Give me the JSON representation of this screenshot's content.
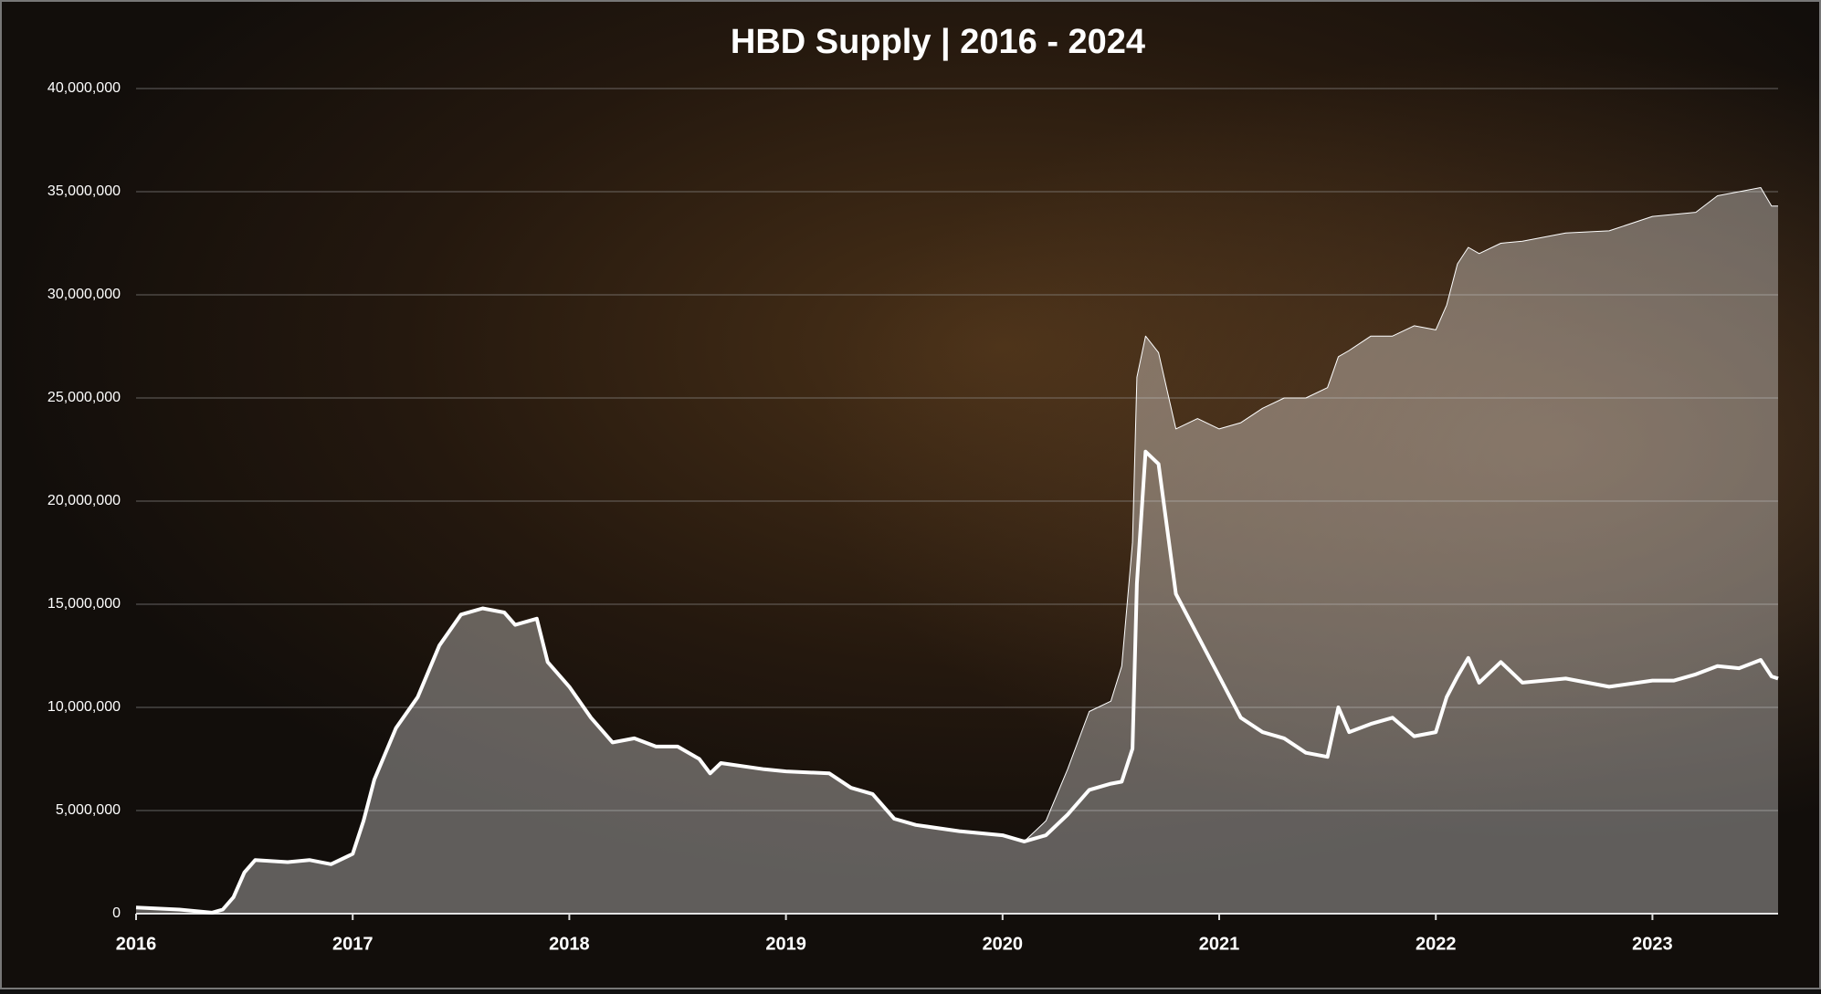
{
  "chart_data": {
    "type": "line",
    "title": "HBD Supply | 2016 - 2024",
    "x": [
      2016,
      2016.2,
      2016.35,
      2016.4,
      2016.45,
      2016.5,
      2016.55,
      2016.7,
      2016.8,
      2016.9,
      2017,
      2017.05,
      2017.1,
      2017.2,
      2017.3,
      2017.4,
      2017.5,
      2017.6,
      2017.7,
      2017.75,
      2017.85,
      2017.9,
      2018,
      2018.1,
      2018.2,
      2018.3,
      2018.4,
      2018.5,
      2018.6,
      2018.65,
      2018.7,
      2018.9,
      2019,
      2019.2,
      2019.3,
      2019.4,
      2019.5,
      2019.6,
      2019.8,
      2020,
      2020.1,
      2020.2,
      2020.3,
      2020.4,
      2020.5,
      2020.55,
      2020.6,
      2020.62,
      2020.66,
      2020.72,
      2020.8,
      2020.9,
      2021,
      2021.1,
      2021.2,
      2021.3,
      2021.4,
      2021.5,
      2021.55,
      2021.6,
      2021.7,
      2021.8,
      2021.9,
      2022,
      2022.05,
      2022.1,
      2022.15,
      2022.2,
      2022.3,
      2022.4,
      2022.6,
      2022.8,
      2023,
      2023.1,
      2023.2,
      2023.3,
      2023.4,
      2023.5,
      2023.55,
      2023.58
    ],
    "series": [
      {
        "color": "#ffffff",
        "line_width": 1,
        "filled": true,
        "values": [
          300000,
          200000,
          50000,
          200000,
          800000,
          2000000,
          2600000,
          2500000,
          2600000,
          2400000,
          2900000,
          4500000,
          6500000,
          9000000,
          10500000,
          13000000,
          14500000,
          14800000,
          14600000,
          14000000,
          14300000,
          12200000,
          11000000,
          9500000,
          8300000,
          8500000,
          8100000,
          8100000,
          7500000,
          6800000,
          7300000,
          7000000,
          6900000,
          6800000,
          6100000,
          5800000,
          4600000,
          4300000,
          4000000,
          3800000,
          3500000,
          4500000,
          7000000,
          9800000,
          10300000,
          12000000,
          18000000,
          26000000,
          28000000,
          27200000,
          23500000,
          24000000,
          23500000,
          23800000,
          24500000,
          25000000,
          25000000,
          25500000,
          27000000,
          27300000,
          28000000,
          28000000,
          28500000,
          28300000,
          29500000,
          31500000,
          32300000,
          32000000,
          32500000,
          32600000,
          33000000,
          33100000,
          33800000,
          33900000,
          34000000,
          34800000,
          35000000,
          35200000,
          34300000,
          34300000
        ]
      },
      {
        "color": "#ffffff",
        "line_width": 4,
        "filled": false,
        "values": [
          300000,
          200000,
          50000,
          200000,
          800000,
          2000000,
          2600000,
          2500000,
          2600000,
          2400000,
          2900000,
          4500000,
          6500000,
          9000000,
          10500000,
          13000000,
          14500000,
          14800000,
          14600000,
          14000000,
          14300000,
          12200000,
          11000000,
          9500000,
          8300000,
          8500000,
          8100000,
          8100000,
          7500000,
          6800000,
          7300000,
          7000000,
          6900000,
          6800000,
          6100000,
          5800000,
          4600000,
          4300000,
          4000000,
          3800000,
          3500000,
          3800000,
          4800000,
          6000000,
          6300000,
          6400000,
          8000000,
          16000000,
          22400000,
          21800000,
          15500000,
          13500000,
          11500000,
          9500000,
          8800000,
          8500000,
          7800000,
          7600000,
          10000000,
          8800000,
          9200000,
          9500000,
          8600000,
          8800000,
          10500000,
          11500000,
          12400000,
          11200000,
          12200000,
          11200000,
          11400000,
          11000000,
          11300000,
          11300000,
          11600000,
          12000000,
          11900000,
          12300000,
          11500000,
          11400000
        ]
      }
    ],
    "xlim": [
      2016,
      2023.58
    ],
    "xticks": [
      2016,
      2017,
      2018,
      2019,
      2020,
      2021,
      2022,
      2023
    ],
    "ylim": [
      0,
      40000000
    ],
    "yticks": [
      0,
      {
        "value": 5000000,
        "label": "5,000,000"
      },
      {
        "value": 10000000,
        "label": "10,000,000"
      },
      {
        "value": 15000000,
        "label": "15,000,000"
      },
      {
        "value": 20000000,
        "label": "20,000,000"
      },
      {
        "value": 25000000,
        "label": "25,000,000"
      },
      {
        "value": 30000000,
        "label": "30,000,000"
      },
      {
        "value": 35000000,
        "label": "35,000,000"
      },
      {
        "value": 40000000,
        "label": "40,000,000"
      }
    ],
    "grid": true
  }
}
